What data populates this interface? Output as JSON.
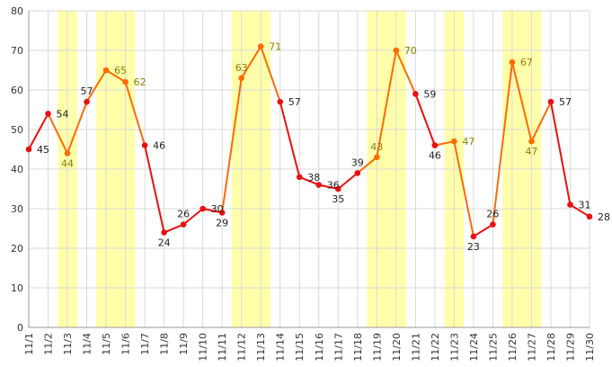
{
  "chart_data": {
    "type": "line",
    "x": [
      "11/1",
      "11/2",
      "11/3",
      "11/4",
      "11/5",
      "11/6",
      "11/7",
      "11/8",
      "11/9",
      "11/10",
      "11/11",
      "11/12",
      "11/13",
      "11/14",
      "11/15",
      "11/16",
      "11/17",
      "11/18",
      "11/19",
      "11/20",
      "11/21",
      "11/22",
      "11/23",
      "11/24",
      "11/25",
      "11/26",
      "11/27",
      "11/28",
      "11/29",
      "11/30"
    ],
    "values": [
      45,
      54,
      44,
      57,
      65,
      62,
      46,
      24,
      26,
      30,
      29,
      63,
      71,
      57,
      38,
      36,
      35,
      39,
      43,
      70,
      59,
      46,
      47,
      23,
      26,
      67,
      47,
      57,
      31,
      28
    ],
    "data_labels": [
      "45",
      "54",
      "44",
      "57",
      "65",
      "62",
      "46",
      "24",
      "26",
      "30",
      "29",
      "63",
      "71",
      "57",
      "38",
      "36",
      "35",
      "39",
      "43",
      "70",
      "59",
      "46",
      "47",
      "23",
      "26",
      "67",
      "47",
      "57",
      "31",
      "28"
    ],
    "highlighted_days": [
      "11/3",
      "11/5",
      "11/6",
      "11/12",
      "11/13",
      "11/19",
      "11/20",
      "11/23",
      "11/26",
      "11/27"
    ],
    "yticks": [
      "0",
      "10",
      "20",
      "30",
      "40",
      "50",
      "60",
      "70",
      "80"
    ],
    "ylim": [
      0,
      80
    ],
    "grid": true,
    "legend": "none",
    "colors": {
      "line": "#e81010",
      "highlight_line": "#ff6a00",
      "highlight_band": "#ffffaa",
      "label_default": "#222222",
      "label_highlight": "#8b8000",
      "grid": "#d9d9d9",
      "axis": "#999999"
    }
  }
}
